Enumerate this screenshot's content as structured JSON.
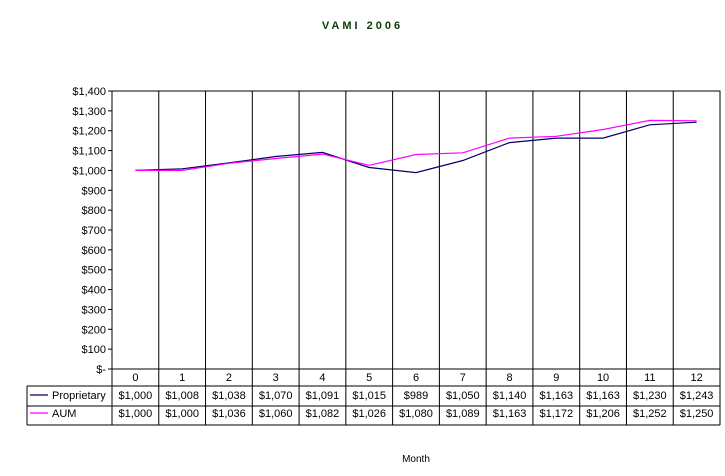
{
  "chart_data": {
    "type": "line",
    "title": "VAMI 2006",
    "xlabel": "Month",
    "ylabel": "",
    "ylim": [
      0,
      1400
    ],
    "y_ticks": [
      "$-",
      "$100",
      "$200",
      "$300",
      "$400",
      "$500",
      "$600",
      "$700",
      "$800",
      "$900",
      "$1,000",
      "$1,100",
      "$1,200",
      "$1,300",
      "$1,400"
    ],
    "y_tick_values": [
      0,
      100,
      200,
      300,
      400,
      500,
      600,
      700,
      800,
      900,
      1000,
      1100,
      1200,
      1300,
      1400
    ],
    "categories": [
      "0",
      "1",
      "2",
      "3",
      "4",
      "5",
      "6",
      "7",
      "8",
      "9",
      "10",
      "11",
      "12"
    ],
    "grid": "vertical",
    "legend": "data-table",
    "series": [
      {
        "name": "Proprietary",
        "color": "#000066",
        "values": [
          1000,
          1008,
          1038,
          1070,
          1091,
          1015,
          989,
          1050,
          1140,
          1163,
          1163,
          1230,
          1243
        ],
        "labels": [
          "$1,000",
          "$1,008",
          "$1,038",
          "$1,070",
          "$1,091",
          "$1,015",
          "$989",
          "$1,050",
          "$1,140",
          "$1,163",
          "$1,163",
          "$1,230",
          "$1,243"
        ]
      },
      {
        "name": "AUM",
        "color": "#ff00ff",
        "values": [
          1000,
          1000,
          1036,
          1060,
          1082,
          1026,
          1080,
          1089,
          1163,
          1172,
          1206,
          1252,
          1250
        ],
        "labels": [
          "$1,000",
          "$1,000",
          "$1,036",
          "$1,060",
          "$1,082",
          "$1,026",
          "$1,080",
          "$1,089",
          "$1,163",
          "$1,172",
          "$1,206",
          "$1,252",
          "$1,250"
        ]
      }
    ]
  }
}
